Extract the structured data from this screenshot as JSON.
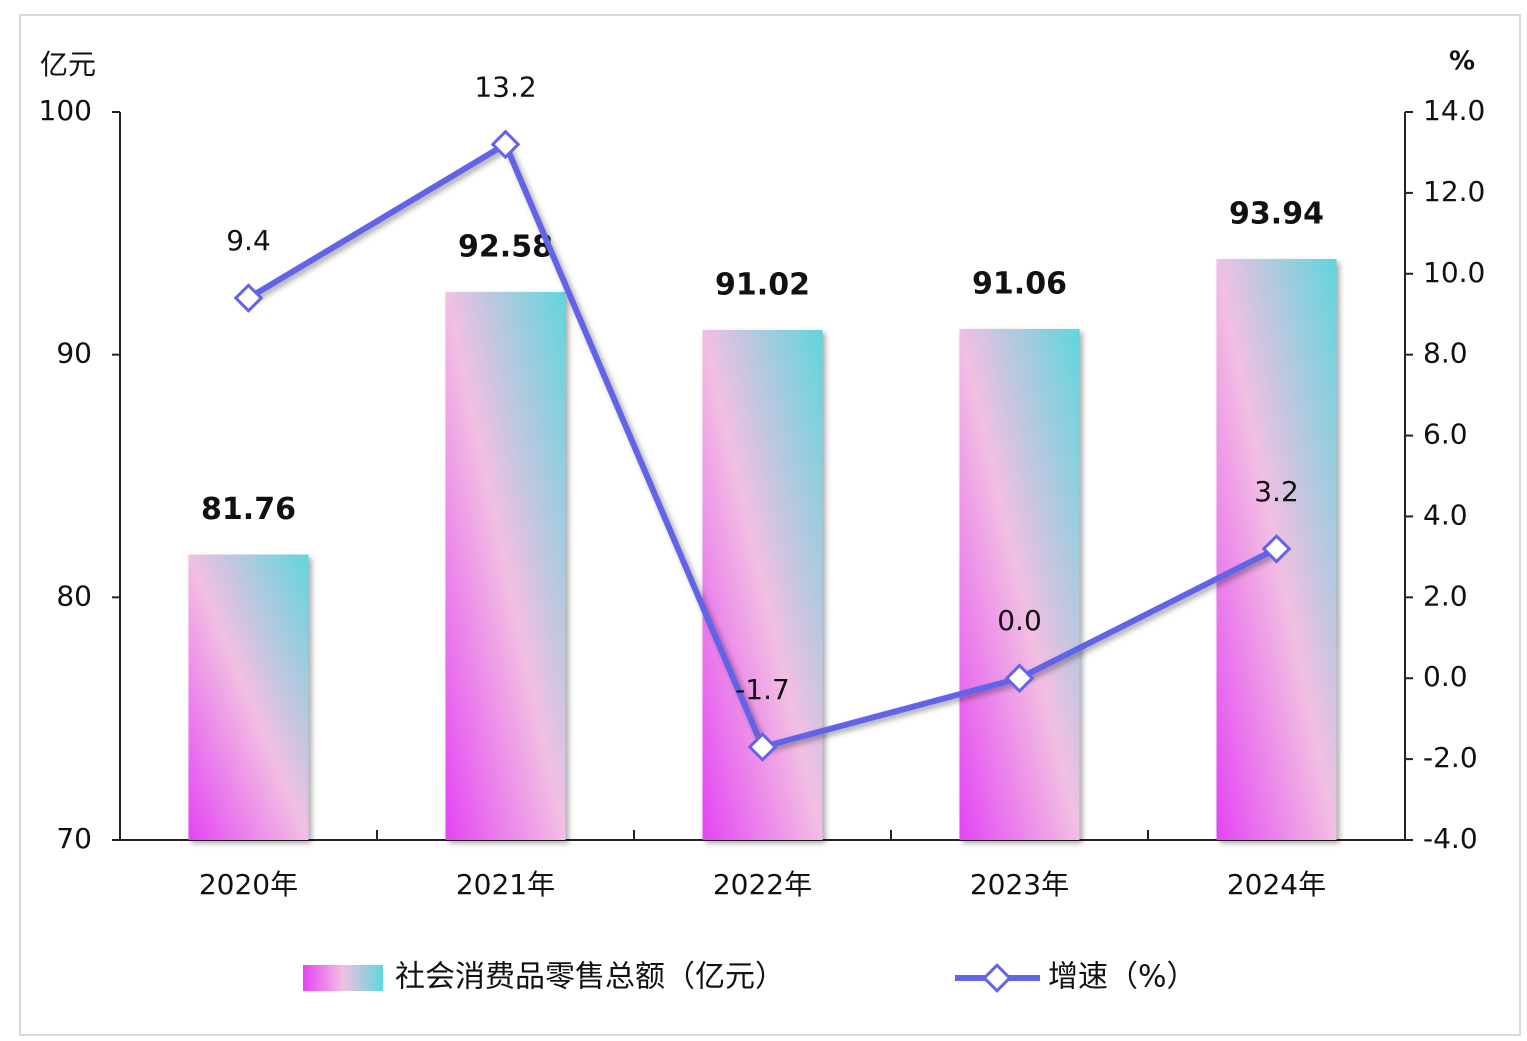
{
  "chart_data": {
    "type": "bar",
    "y_label": "亿元",
    "y2_label": "%",
    "categories": [
      "2020年",
      "2021年",
      "2022年",
      "2023年",
      "2024年"
    ],
    "series": [
      {
        "name": "社会消费品零售总额（亿元）",
        "type": "bar",
        "colors": [
          "#e444f4",
          "#f2bfe2",
          "#5fd6dc"
        ],
        "values": [
          81.76,
          92.58,
          91.02,
          91.06,
          93.94
        ]
      },
      {
        "name": "增速（%）",
        "type": "line",
        "axis": "y2",
        "color": "#6464e8",
        "values": [
          9.4,
          13.2,
          -1.7,
          0.0,
          3.2
        ],
        "value_labels": [
          "9.4",
          "13.2",
          "-1.7",
          "0.0",
          "3.2"
        ]
      }
    ],
    "ylim": [
      70,
      100
    ],
    "yticks": [
      70,
      80,
      90,
      100
    ],
    "y2lim": [
      -4,
      14
    ],
    "y2ticks": [
      {
        "value": -4,
        "label": "-4.0"
      },
      {
        "value": -2,
        "label": "-2.0"
      },
      {
        "value": 0,
        "label": "0.0"
      },
      {
        "value": 2,
        "label": "2.0"
      },
      {
        "value": 4,
        "label": "4.0"
      },
      {
        "value": 6,
        "label": "6.0"
      },
      {
        "value": 8,
        "label": "8.0"
      },
      {
        "value": 10,
        "label": "10.0"
      },
      {
        "value": 12,
        "label": "12.0"
      },
      {
        "value": 14,
        "label": "14.0"
      }
    ],
    "grid": false
  }
}
